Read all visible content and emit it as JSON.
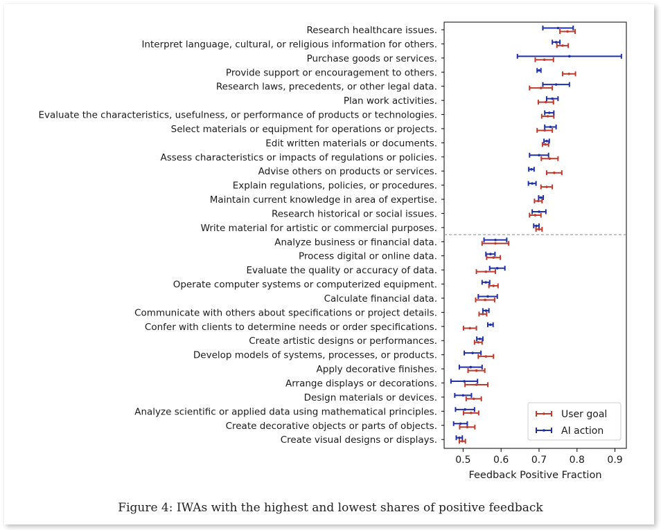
{
  "chart_data": {
    "type": "errorbar",
    "xlabel": "Feedback Positive Fraction",
    "xlim": [
      0.45,
      0.93
    ],
    "xticks": [
      0.5,
      0.6,
      0.7,
      0.8,
      0.9
    ],
    "xtick_labels": [
      "0.5",
      "0.6",
      "0.7",
      "0.8",
      "0.9"
    ],
    "legend_placement": "lower-right",
    "divider": "dashed line between the 15 highest and 15 lowest activities",
    "categories": [
      "Research healthcare issues.",
      "Interpret language, cultural, or religious information for others.",
      "Purchase goods or services.",
      "Provide support or encouragement to others.",
      "Research laws, precedents, or other legal data.",
      "Plan work activities.",
      "Evaluate the characteristics, usefulness, or performance of products or technologies.",
      "Select materials or equipment for operations or projects.",
      "Edit written materials or documents.",
      "Assess characteristics or impacts of regulations or policies.",
      "Advise others on products or services.",
      "Explain regulations, policies, or procedures.",
      "Maintain current knowledge in area of expertise.",
      "Research historical or social issues.",
      "Write material for artistic or commercial purposes.",
      "Analyze business or financial data.",
      "Process digital or online data.",
      "Evaluate the quality or accuracy of data.",
      "Operate computer systems or computerized equipment.",
      "Calculate financial data.",
      "Communicate with others about specifications or project details.",
      "Confer with clients to determine needs or order specifications.",
      "Create artistic designs or performances.",
      "Develop models of systems, processes, or products.",
      "Apply decorative finishes.",
      "Arrange displays or decorations.",
      "Design materials or devices.",
      "Analyze scientific or applied data using mathematical principles.",
      "Create decorative objects or parts of objects.",
      "Create visual designs or displays."
    ],
    "series": [
      {
        "name": "User goal",
        "color": "#c0392b",
        "values": [
          0.775,
          0.762,
          0.714,
          0.779,
          0.705,
          0.718,
          0.723,
          0.715,
          0.717,
          0.728,
          0.74,
          0.72,
          0.698,
          0.69,
          0.7,
          0.585,
          0.58,
          0.56,
          0.58,
          0.558,
          0.552,
          0.518,
          0.54,
          0.56,
          0.535,
          0.535,
          0.528,
          0.521,
          0.511,
          0.498
        ],
        "err_low": [
          0.02,
          0.015,
          0.024,
          0.017,
          0.03,
          0.02,
          0.016,
          0.02,
          0.008,
          0.022,
          0.02,
          0.015,
          0.01,
          0.015,
          0.008,
          0.035,
          0.018,
          0.025,
          0.012,
          0.025,
          0.01,
          0.017,
          0.01,
          0.02,
          0.022,
          0.03,
          0.02,
          0.02,
          0.02,
          0.008
        ],
        "err_high": [
          0.02,
          0.015,
          0.024,
          0.017,
          0.03,
          0.02,
          0.016,
          0.02,
          0.008,
          0.022,
          0.02,
          0.015,
          0.01,
          0.015,
          0.008,
          0.035,
          0.018,
          0.025,
          0.012,
          0.025,
          0.01,
          0.017,
          0.01,
          0.02,
          0.022,
          0.03,
          0.02,
          0.02,
          0.02,
          0.008
        ]
      },
      {
        "name": "AI action",
        "color": "#1f2fa8",
        "values": [
          0.75,
          0.745,
          0.78,
          0.7,
          0.745,
          0.735,
          0.727,
          0.73,
          0.72,
          0.7,
          0.68,
          0.682,
          0.705,
          0.7,
          0.693,
          0.585,
          0.572,
          0.59,
          0.56,
          0.565,
          0.56,
          0.572,
          0.544,
          0.525,
          0.52,
          0.503,
          0.5,
          0.505,
          0.493,
          0.49
        ],
        "err_low": [
          0.04,
          0.01,
          0.137,
          0.005,
          0.035,
          0.015,
          0.012,
          0.015,
          0.007,
          0.025,
          0.007,
          0.01,
          0.006,
          0.018,
          0.007,
          0.03,
          0.012,
          0.02,
          0.01,
          0.025,
          0.008,
          0.007,
          0.008,
          0.022,
          0.03,
          0.035,
          0.022,
          0.025,
          0.018,
          0.008
        ],
        "err_high": [
          0.04,
          0.01,
          0.137,
          0.005,
          0.035,
          0.015,
          0.012,
          0.015,
          0.007,
          0.025,
          0.007,
          0.01,
          0.006,
          0.018,
          0.007,
          0.03,
          0.012,
          0.02,
          0.01,
          0.025,
          0.008,
          0.007,
          0.008,
          0.022,
          0.03,
          0.035,
          0.022,
          0.025,
          0.018,
          0.008
        ]
      }
    ]
  },
  "caption": "Figure 4: IWAs with the highest and lowest shares of positive feedback"
}
